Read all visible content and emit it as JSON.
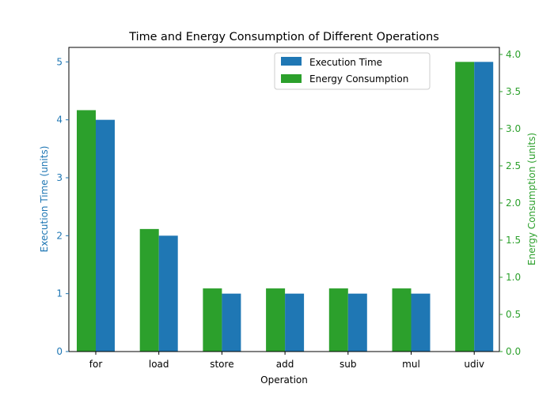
{
  "chart_data": {
    "type": "bar",
    "title": "Time and Energy Consumption of Different Operations",
    "xlabel": "Operation",
    "categories": [
      "for",
      "load",
      "store",
      "add",
      "sub",
      "mul",
      "udiv"
    ],
    "left_axis": {
      "label": "Execution Time (units)",
      "ylim": [
        0,
        5.25
      ],
      "ticks": [
        0,
        1,
        2,
        3,
        4,
        5
      ],
      "tick_labels": [
        "0",
        "1",
        "2",
        "3",
        "4",
        "5"
      ],
      "color": "#1f77b4"
    },
    "right_axis": {
      "label": "Energy Consumption (units)",
      "ylim": [
        0,
        4.095
      ],
      "ticks": [
        0,
        0.5,
        1,
        1.5,
        2,
        2.5,
        3,
        3.5,
        4
      ],
      "tick_labels": [
        "0.0",
        "0.5",
        "1.0",
        "1.5",
        "2.0",
        "2.5",
        "3.0",
        "3.5",
        "4.0"
      ],
      "color": "#2ca02c"
    },
    "series": [
      {
        "name": "Execution Time",
        "axis": "left",
        "color": "#1f77b4",
        "values": [
          4,
          2,
          1,
          1,
          1,
          1,
          5
        ]
      },
      {
        "name": "Energy Consumption",
        "axis": "right",
        "color": "#2ca02c",
        "values": [
          3.25,
          1.65,
          0.85,
          0.85,
          0.85,
          0.85,
          3.9
        ]
      }
    ],
    "legend": {
      "placement": "top-right",
      "entries": [
        "Execution Time",
        "Energy Consumption"
      ]
    },
    "grid": false
  }
}
